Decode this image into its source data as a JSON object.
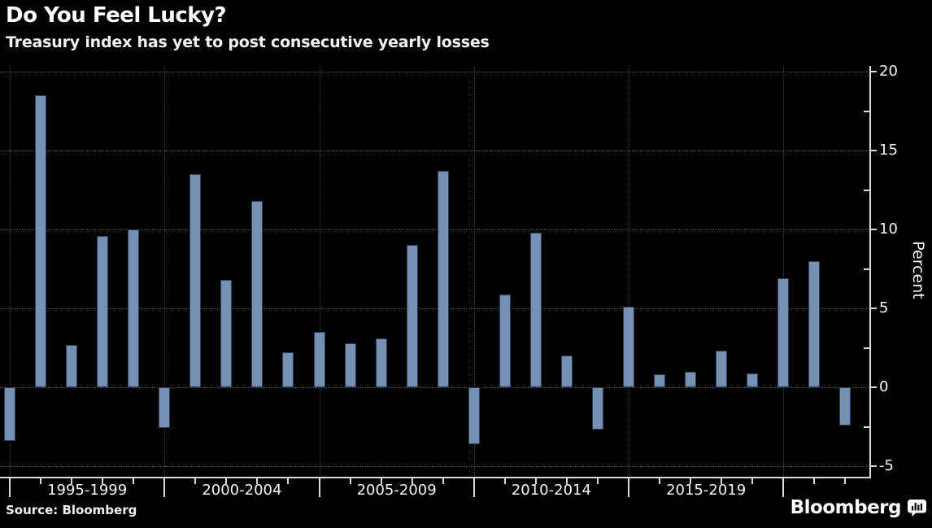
{
  "header": {
    "title": "Do You Feel Lucky?",
    "subtitle": "Treasury index has yet to post consecutive yearly losses"
  },
  "chart_data": {
    "type": "bar",
    "title": "Do You Feel Lucky?",
    "subtitle": "Treasury index has yet to post consecutive yearly losses",
    "ylabel": "Percent",
    "xlabel": "",
    "ylim": [
      -5.8,
      20.4
    ],
    "grid": true,
    "legend": false,
    "y_ticks": [
      20,
      15,
      10,
      5,
      0,
      -5
    ],
    "y_minor_ticks": [
      17.5,
      12.5,
      7.5,
      2.5,
      -2.5
    ],
    "x_group_labels": [
      "1995-1999",
      "2000-2004",
      "2005-2009",
      "2010-2014",
      "2015-2019"
    ],
    "x_gridline_years": [
      1994,
      1999,
      2004,
      2009,
      2014,
      2019
    ],
    "bar_color": "#768FB3",
    "bar_border_color": "#2C3C55",
    "years": [
      1994,
      1995,
      1996,
      1997,
      1998,
      1999,
      2000,
      2001,
      2002,
      2003,
      2004,
      2005,
      2006,
      2007,
      2008,
      2009,
      2010,
      2011,
      2012,
      2013,
      2014,
      2015,
      2016,
      2017,
      2018,
      2019,
      2020,
      2021
    ],
    "values": [
      -3.4,
      18.5,
      2.7,
      9.6,
      10.0,
      -2.6,
      13.5,
      6.8,
      11.8,
      2.2,
      3.5,
      2.8,
      3.1,
      9.0,
      13.7,
      -3.6,
      5.9,
      9.8,
      2.0,
      -2.7,
      5.1,
      0.8,
      1.0,
      2.3,
      0.9,
      6.9,
      8.0,
      -2.4
    ]
  },
  "footer": {
    "source": "Source: Bloomberg",
    "brand": "Bloomberg",
    "brand_icon": "bloomberg-terminal-icon"
  },
  "colors": {
    "background": "#000000",
    "bar": "#768FB3",
    "grid": "#4d4d4d",
    "axis": "#d9d9d9",
    "text": "#ffffff"
  }
}
